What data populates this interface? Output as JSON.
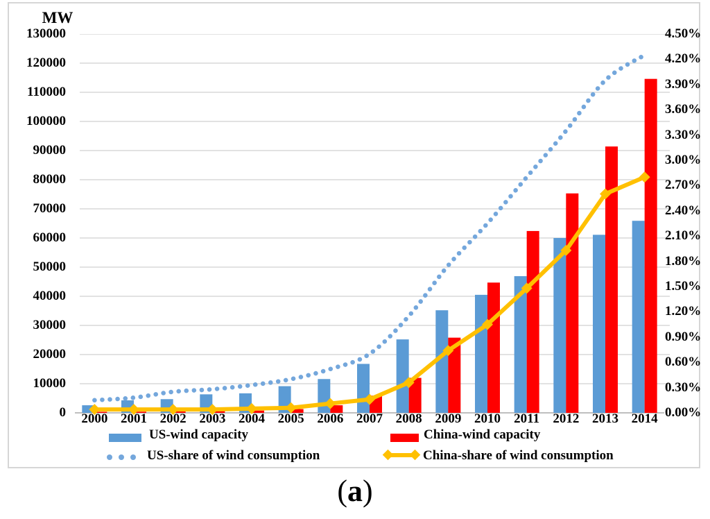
{
  "figure": {
    "caption": {
      "open": "(",
      "letter": "a",
      "close": ")"
    }
  },
  "chart_data": {
    "type": "bar",
    "subtype": "dual-axis combo: grouped bars (left axis, MW) + two share lines (right axis, %)",
    "title": "",
    "xlabel": "",
    "ylabel": "MW",
    "categories": [
      "2000",
      "2001",
      "2002",
      "2003",
      "2004",
      "2005",
      "2006",
      "2007",
      "2008",
      "2009",
      "2010",
      "2011",
      "2012",
      "2013",
      "2014"
    ],
    "series": [
      {
        "name": "US-wind capacity",
        "kind": "bar",
        "axis": "left",
        "color": "#5B9BD5",
        "values": [
          2600,
          4300,
          4700,
          6350,
          6700,
          9150,
          11600,
          16800,
          25200,
          35200,
          40500,
          46900,
          60000,
          61100,
          65900
        ]
      },
      {
        "name": "China-wind capacity",
        "kind": "bar",
        "axis": "left",
        "color": "#FF0000",
        "values": [
          350,
          400,
          470,
          570,
          770,
          1300,
          2600,
          5900,
          12000,
          25800,
          44700,
          62400,
          75300,
          91400,
          114600
        ]
      },
      {
        "name": "US-share of wind consumption",
        "kind": "dotted-line",
        "axis": "right",
        "color": "#74A7DC",
        "values": [
          0.15,
          0.18,
          0.25,
          0.28,
          0.33,
          0.4,
          0.52,
          0.7,
          1.15,
          1.75,
          2.25,
          2.8,
          3.35,
          3.95,
          4.25
        ]
      },
      {
        "name": "China-share of wind consumption",
        "kind": "line-diamond",
        "axis": "right",
        "color": "#FFC000",
        "values": [
          0.04,
          0.04,
          0.04,
          0.04,
          0.05,
          0.06,
          0.11,
          0.16,
          0.36,
          0.74,
          1.05,
          1.48,
          1.93,
          2.6,
          2.8
        ]
      }
    ],
    "left_axis": {
      "title": "MW",
      "min": 0,
      "max": 130000,
      "step": 10000,
      "tick_labels_top_to_bottom": [
        "130000",
        "120000",
        "110000",
        "100000",
        "90000",
        "80000",
        "70000",
        "60000",
        "50000",
        "40000",
        "30000",
        "20000",
        "10000",
        "0"
      ]
    },
    "right_axis": {
      "min": 0,
      "max": 4.5,
      "step": 0.3,
      "tick_labels_top_to_bottom": [
        "4.50%",
        "4.20%",
        "3.90%",
        "3.60%",
        "3.30%",
        "3.00%",
        "2.70%",
        "2.40%",
        "2.10%",
        "1.80%",
        "1.50%",
        "1.20%",
        "0.90%",
        "0.60%",
        "0.30%",
        "0.00%"
      ]
    },
    "grid": true,
    "grid_color": "#D9D9D9",
    "axis_line_color": "#BFBFBF",
    "legend_position": "bottom"
  }
}
